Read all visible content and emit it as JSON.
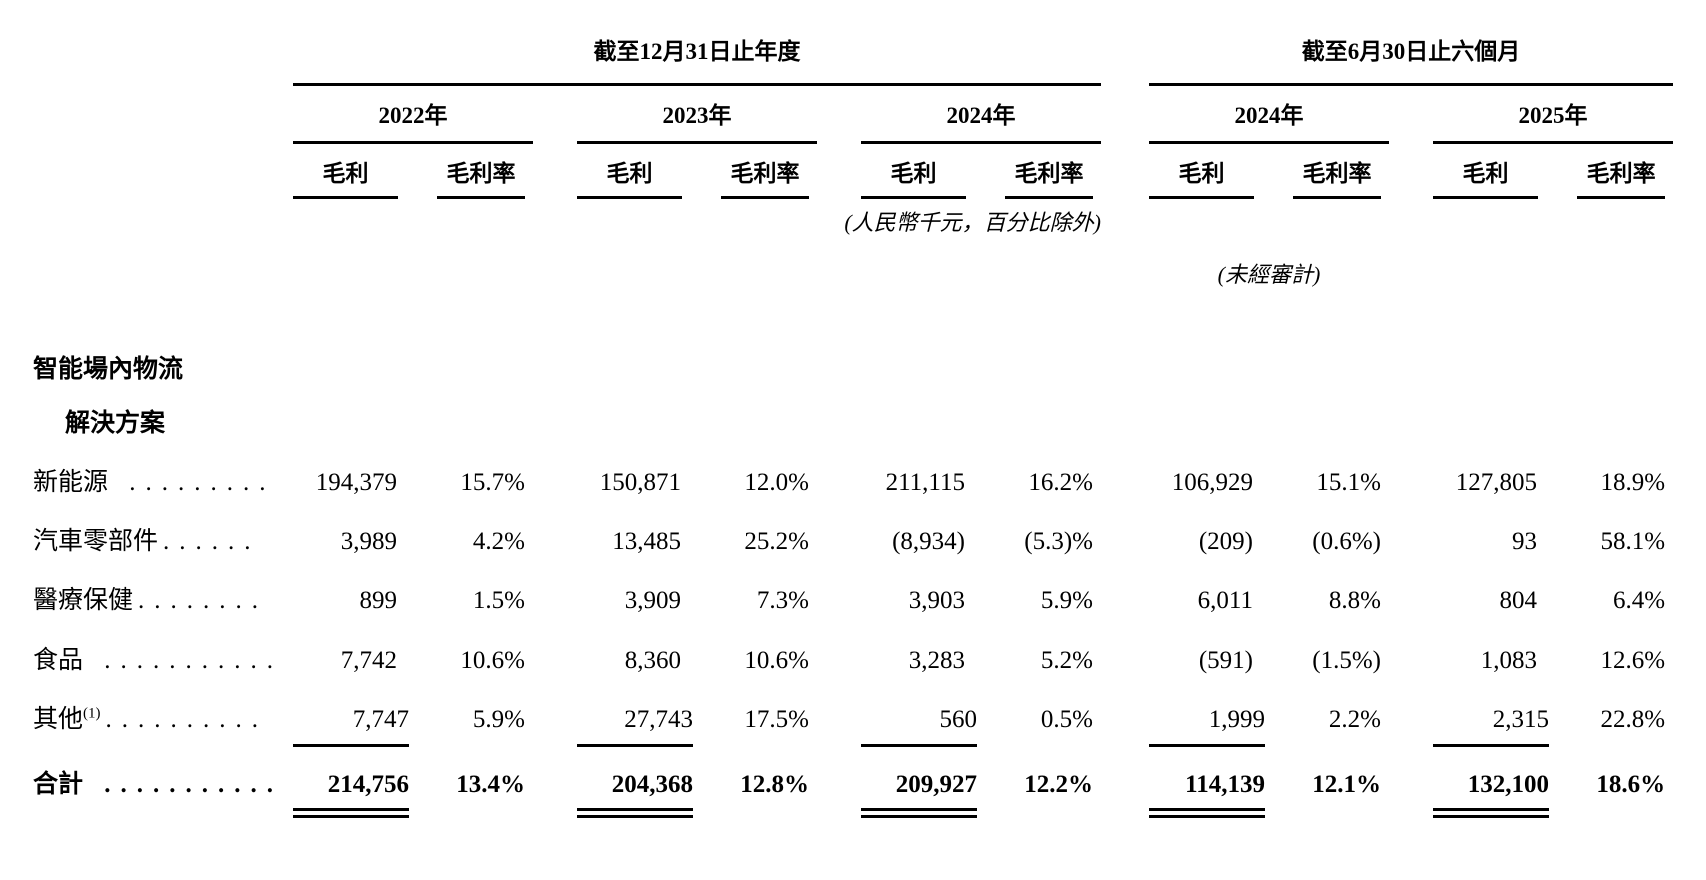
{
  "document": {
    "sections": [
      {
        "title": "截至12月31日止年度"
      },
      {
        "title": "截至6月30日止六個月"
      }
    ],
    "years": [
      "2022年",
      "2023年",
      "2024年",
      "2024年",
      "2025年"
    ],
    "col_headers": {
      "profit": "毛利",
      "margin": "毛利率"
    },
    "notes": {
      "units": "(人民幣千元，百分比除外)",
      "unaudited": "(未經審計)"
    },
    "category_group": {
      "line1": "智能場內物流",
      "line2": "解決方案"
    },
    "rows": [
      {
        "label": "新能源",
        "sup": "",
        "dots": " .........",
        "values": [
          "194,379",
          "15.7%",
          "150,871",
          "12.0%",
          "211,115",
          "16.2%",
          "106,929",
          "15.1%",
          "127,805",
          "18.9%"
        ]
      },
      {
        "label": "汽車零部件",
        "sup": "",
        "dots": "......",
        "values": [
          "3,989",
          "4.2%",
          "13,485",
          "25.2%",
          "(8,934)",
          "(5.3)%",
          "(209)",
          "(0.6%)",
          "93",
          "58.1%"
        ]
      },
      {
        "label": "醫療保健",
        "sup": "",
        "dots": "........",
        "values": [
          "899",
          "1.5%",
          "3,909",
          "7.3%",
          "3,903",
          "5.9%",
          "6,011",
          "8.8%",
          "804",
          "6.4%"
        ]
      },
      {
        "label": "食品",
        "sup": "",
        "dots": " ...........",
        "values": [
          "7,742",
          "10.6%",
          "8,360",
          "10.6%",
          "3,283",
          "5.2%",
          "(591)",
          "(1.5%)",
          "1,083",
          "12.6%"
        ]
      },
      {
        "label": "其他",
        "sup": "(1)",
        "dots": "..........",
        "values": [
          "7,747",
          "5.9%",
          "27,743",
          "17.5%",
          "560",
          "0.5%",
          "1,999",
          "2.2%",
          "2,315",
          "22.8%"
        ]
      }
    ],
    "total": {
      "label": "合計",
      "dots": " ...........",
      "values": [
        "214,756",
        "13.4%",
        "204,368",
        "12.8%",
        "209,927",
        "12.2%",
        "114,139",
        "12.1%",
        "132,100",
        "18.6%"
      ]
    }
  }
}
